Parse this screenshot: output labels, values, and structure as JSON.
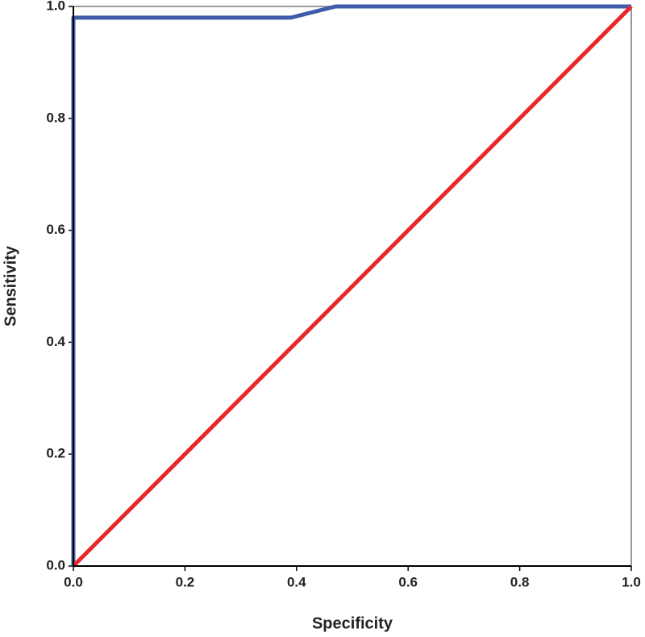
{
  "chart_data": {
    "type": "line",
    "x_label": "Specificity",
    "y_label": "Sensitivity",
    "xlim": [
      0,
      1
    ],
    "ylim": [
      0,
      1
    ],
    "xticks": [
      {
        "value": 0,
        "label": "0.0"
      },
      0.2,
      0.4,
      0.6,
      0.8,
      {
        "value": 1,
        "label": "1.0"
      }
    ],
    "yticks": [
      {
        "value": 0,
        "label": "0.0"
      },
      0.2,
      0.4,
      0.6,
      0.8,
      {
        "value": 1,
        "label": "1.0"
      }
    ],
    "series": [
      {
        "color": "#3f5ba9",
        "x": [
          0,
          0,
          0.39,
          0.47,
          1
        ],
        "values": [
          0,
          0.98,
          0.98,
          1,
          1
        ]
      },
      {
        "color": "#e8272a",
        "x": [
          0,
          1
        ],
        "values": [
          0,
          1
        ]
      }
    ]
  }
}
